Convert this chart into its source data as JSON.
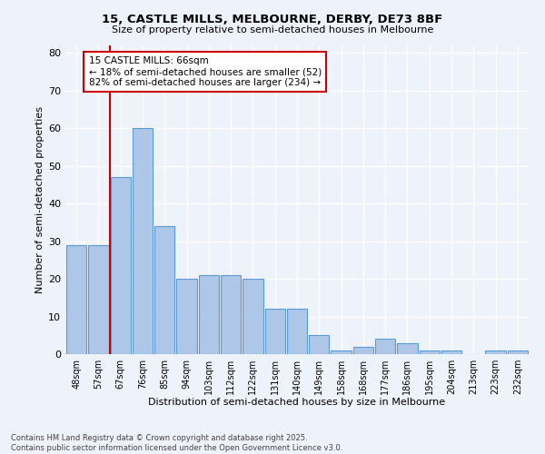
{
  "title1": "15, CASTLE MILLS, MELBOURNE, DERBY, DE73 8BF",
  "title2": "Size of property relative to semi-detached houses in Melbourne",
  "xlabel": "Distribution of semi-detached houses by size in Melbourne",
  "ylabel": "Number of semi-detached properties",
  "footer1": "Contains HM Land Registry data © Crown copyright and database right 2025.",
  "footer2": "Contains public sector information licensed under the Open Government Licence v3.0.",
  "categories": [
    "48sqm",
    "57sqm",
    "67sqm",
    "76sqm",
    "85sqm",
    "94sqm",
    "103sqm",
    "112sqm",
    "122sqm",
    "131sqm",
    "140sqm",
    "149sqm",
    "158sqm",
    "168sqm",
    "177sqm",
    "186sqm",
    "195sqm",
    "204sqm",
    "213sqm",
    "223sqm",
    "232sqm"
  ],
  "values": [
    29,
    29,
    47,
    60,
    34,
    20,
    21,
    21,
    20,
    12,
    12,
    5,
    1,
    2,
    4,
    3,
    1,
    1,
    0,
    1,
    1
  ],
  "bar_color": "#aec6e8",
  "bar_edge_color": "#5b9bd5",
  "vline_color": "#cc0000",
  "vline_x": 1.5,
  "annotation_title": "15 CASTLE MILLS: 66sqm",
  "annotation_line2": "← 18% of semi-detached houses are smaller (52)",
  "annotation_line3": "82% of semi-detached houses are larger (234) →",
  "annotation_box_color": "#cc0000",
  "ylim": [
    0,
    82
  ],
  "yticks": [
    0,
    10,
    20,
    30,
    40,
    50,
    60,
    70,
    80
  ],
  "bg_color": "#eef2fa",
  "plot_bg_color": "#eef2fa",
  "grid_color": "#ffffff"
}
